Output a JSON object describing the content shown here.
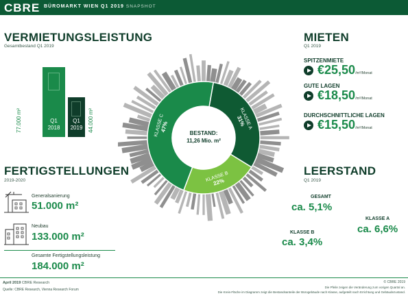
{
  "header": {
    "logo": "CBRE",
    "title": "BÜROMARKT WIEN Q1 2019",
    "subtitle": "SNAPSHOT"
  },
  "vermietung": {
    "title": "VERMIETUNGSLEISTUNG",
    "subtitle": "Gesamtbestand Q1 2019",
    "bars": [
      {
        "value_label": "77.000 m²",
        "period": "Q1",
        "year": "2018",
        "value": 77000
      },
      {
        "value_label": "44.000 m²",
        "period": "Q1",
        "year": "2019",
        "value": 44000
      }
    ]
  },
  "bestand": {
    "label": "BESTAND:",
    "value": "11,26 Mio. m²",
    "segments": [
      {
        "name": "KLASSE A",
        "pct_label": "31%",
        "value": 31,
        "color": "#0f5a33"
      },
      {
        "name": "KLASSE B",
        "pct_label": "22%",
        "value": 22,
        "color": "#7cc242"
      },
      {
        "name": "KLASSE C",
        "pct_label": "47%",
        "value": 47,
        "color": "#1a8a4a"
      }
    ]
  },
  "mieten": {
    "title": "MIETEN",
    "subtitle": "Q1 2019",
    "items": [
      {
        "label": "SPITZENMIETE",
        "value": "€25,50",
        "unit": "/m²/Monat"
      },
      {
        "label": "GUTE LAGEN",
        "value": "€18,50",
        "unit": "/m²/Monat"
      },
      {
        "label": "DURCHSCHNITTLICHE LAGEN",
        "value": "€15,50",
        "unit": "/m²/Monat"
      }
    ]
  },
  "fertig": {
    "title": "FERTIGSTELLUNGEN",
    "subtitle": "2019-2020",
    "items": [
      {
        "label": "Generalsanierung",
        "value": "51.000 m²"
      },
      {
        "label": "Neubau",
        "value": "133.000 m²"
      }
    ],
    "total_label": "Gesamte Fertigstellungsleistung",
    "total_value": "184.000 m²"
  },
  "leerstand": {
    "title": "LEERSTAND",
    "subtitle": "Q1 2019",
    "gesamt_label": "GESAMT",
    "gesamt_value": "ca. 5,1%",
    "a_label": "KLASSE A",
    "a_value": "ca. 6,6%",
    "b_label": "KLASSE B",
    "b_value": "ca. 3,4%"
  },
  "footer": {
    "date": "April 2019",
    "research": "CBRE Research",
    "source": "Quelle: CBRE Research, Vienna Research Forum",
    "copyright": "© CBRE 2019",
    "note1": "Die Pfeile zeigen die Veränderung zum vorigen Quartal an.",
    "note2": "Die Kreis-Fläche im Diagramm zeigt die Bestandsanteile der Bürogebäude nach Klasse, aufgeteilt nach Errichtung und Gebäudezustand."
  },
  "colors": {
    "dark_green": "#0f5a33",
    "green": "#1a8a4a",
    "light_green": "#7cc242",
    "skyline": "#a3a3a3"
  }
}
